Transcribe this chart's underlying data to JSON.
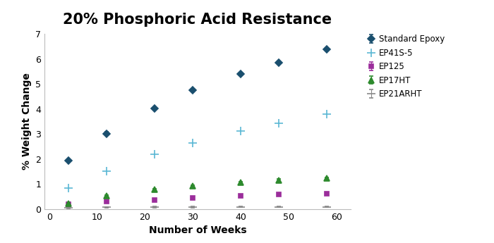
{
  "title": "20% Phosphoric Acid Resistance",
  "xlabel": "Number of Weeks",
  "ylabel": "% Weight Change",
  "xlim": [
    -1,
    63
  ],
  "ylim": [
    0,
    7
  ],
  "yticks": [
    0,
    1,
    2,
    3,
    4,
    5,
    6,
    7
  ],
  "xticks": [
    0,
    10,
    20,
    30,
    40,
    50,
    60
  ],
  "series": {
    "Standard Epoxy": {
      "x": [
        4,
        12,
        22,
        30,
        40,
        48,
        58
      ],
      "y": [
        1.93,
        3.02,
        4.02,
        4.75,
        5.4,
        5.85,
        6.38
      ],
      "yerr": [
        0.06,
        0.06,
        0.06,
        0.06,
        0.06,
        0.06,
        0.06
      ],
      "color": "#1a4f6e",
      "marker": "D",
      "markersize": 5
    },
    "EP41S-5": {
      "x": [
        4,
        12,
        22,
        30,
        40,
        48,
        58
      ],
      "y": [
        0.85,
        1.52,
        2.18,
        2.65,
        3.12,
        3.43,
        3.8
      ],
      "yerr": [
        0.0,
        0.0,
        0.0,
        0.0,
        0.0,
        0.0,
        0.0
      ],
      "color": "#5bb8d4",
      "marker": "+",
      "markersize": 8
    },
    "EP125": {
      "x": [
        4,
        12,
        22,
        30,
        40,
        48,
        58
      ],
      "y": [
        0.18,
        0.3,
        0.37,
        0.45,
        0.53,
        0.58,
        0.62
      ],
      "yerr": [
        0.04,
        0.04,
        0.04,
        0.04,
        0.04,
        0.04,
        0.04
      ],
      "color": "#9b2d9b",
      "marker": "s",
      "markersize": 5
    },
    "EP17HT": {
      "x": [
        4,
        12,
        22,
        30,
        40,
        48,
        58
      ],
      "y": [
        0.22,
        0.52,
        0.77,
        0.92,
        1.05,
        1.15,
        1.22
      ],
      "yerr": [
        0.04,
        0.04,
        0.04,
        0.04,
        0.04,
        0.04,
        0.04
      ],
      "color": "#2d8a2d",
      "marker": "^",
      "markersize": 6
    },
    "EP21ARHT": {
      "x": [
        4,
        12,
        22,
        30,
        40,
        48,
        58
      ],
      "y": [
        0.05,
        0.07,
        0.08,
        0.08,
        0.09,
        0.09,
        0.09
      ],
      "yerr": [
        0.02,
        0.02,
        0.02,
        0.02,
        0.02,
        0.02,
        0.02
      ],
      "color": "#888888",
      "marker": "_",
      "markersize": 8
    }
  },
  "legend_order": [
    "Standard Epoxy",
    "EP41S-5",
    "EP125",
    "EP17HT",
    "EP21ARHT"
  ],
  "background_color": "#ffffff",
  "title_fontsize": 15,
  "axis_label_fontsize": 10,
  "tick_fontsize": 9,
  "legend_fontsize": 8.5
}
